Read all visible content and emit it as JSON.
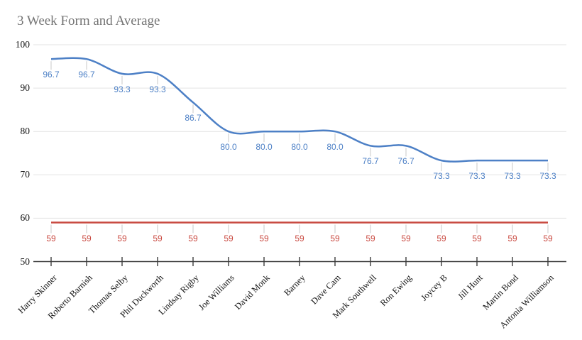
{
  "chart_data": {
    "type": "line",
    "title": "3 Week Form and Average",
    "categories": [
      "Harry Skinner",
      "Roberto Barnish",
      "Thomas Selby",
      "Phil Duckworth",
      "Lindsay Rigby",
      "Joe Williams",
      "David Monk",
      "Barney",
      "Dave Cam",
      "Mark Southwell",
      "Ron Ewing",
      "Joycey B",
      "Jill Hunt",
      "Martin Bond",
      "Antonia Williamson"
    ],
    "series": [
      {
        "name": "Form",
        "color": "#4d80c6",
        "curve": "smooth",
        "values": [
          96.7,
          96.7,
          93.3,
          93.3,
          86.7,
          80.0,
          80.0,
          80.0,
          80.0,
          76.7,
          76.7,
          73.3,
          73.3,
          73.3,
          73.3
        ],
        "labels": [
          "96.7",
          "96.7",
          "93.3",
          "93.3",
          "86.7",
          "80.0",
          "80.0",
          "80.0",
          "80.0",
          "76.7",
          "76.7",
          "73.3",
          "73.3",
          "73.3",
          "73.3"
        ]
      },
      {
        "name": "Average",
        "color": "#c94a41",
        "curve": "straight",
        "values": [
          59,
          59,
          59,
          59,
          59,
          59,
          59,
          59,
          59,
          59,
          59,
          59,
          59,
          59,
          59
        ],
        "labels": [
          "59",
          "59",
          "59",
          "59",
          "59",
          "59",
          "59",
          "59",
          "59",
          "59",
          "59",
          "59",
          "59",
          "59",
          "59"
        ]
      }
    ],
    "ylim": [
      50,
      100
    ],
    "yticks": [
      50,
      60,
      70,
      80,
      90,
      100
    ],
    "ytick_labels": [
      "50",
      "60",
      "70",
      "80",
      "90",
      "100"
    ],
    "grid": true,
    "legend": "none",
    "colors": {
      "title": "#757575",
      "gridline": "#e3e3e3",
      "axis": "#3c3c3c",
      "label_stem": "#c9c9c9"
    }
  }
}
